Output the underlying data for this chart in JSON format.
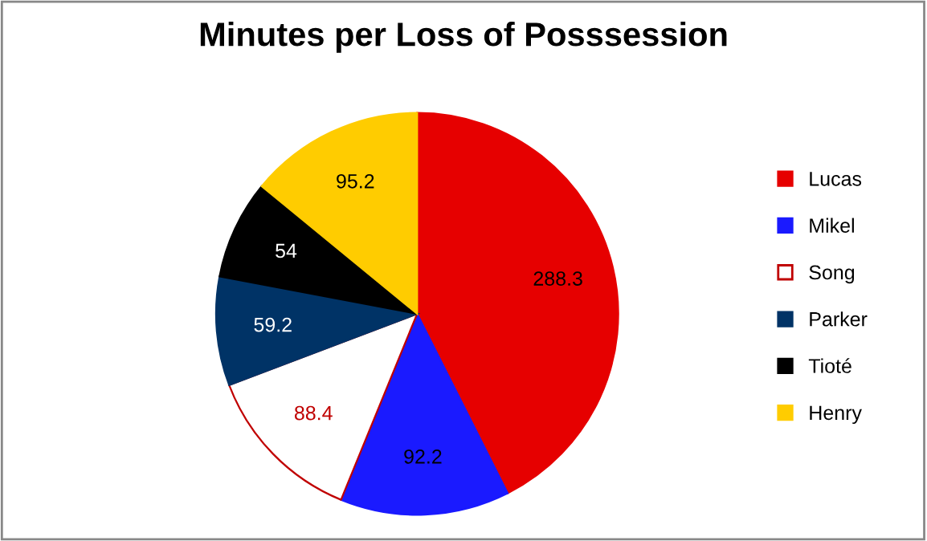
{
  "chart_data": {
    "type": "pie",
    "title": "Minutes per Loss of Posssession",
    "categories": [
      "Lucas",
      "Mikel",
      "Song",
      "Parker",
      "Tioté",
      "Henry"
    ],
    "values": [
      288.3,
      92.2,
      88.4,
      59.2,
      54,
      95.2
    ],
    "colors": [
      "#e60000",
      "#1a1aff",
      "#ffffff",
      "#003366",
      "#000000",
      "#ffcc00"
    ],
    "data_labels": true,
    "legend": "right"
  }
}
